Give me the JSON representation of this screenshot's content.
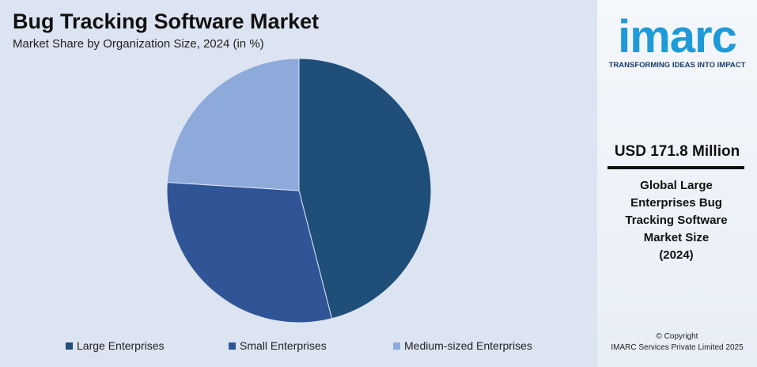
{
  "chart_data": {
    "type": "pie",
    "title": "Bug Tracking Software Market",
    "subtitle": "Market Share by Organization Size, 2024 (in %)",
    "categories": [
      "Large Enterprises",
      "Small Enterprises",
      "Medium-sized Enterprises"
    ],
    "values": [
      46,
      30,
      24
    ],
    "colors": [
      "#1f4e79",
      "#2f5597",
      "#8eaadb"
    ]
  },
  "sidebar": {
    "logo": "imarc",
    "tagline": "TRANSFORMING IDEAS INTO IMPACT",
    "value": "USD 171.8 Million",
    "description": "Global Large Enterprises Bug Tracking Software Market Size (2024)",
    "copyright": "© Copyright",
    "company": "IMARC Services Private Limited 2025"
  }
}
